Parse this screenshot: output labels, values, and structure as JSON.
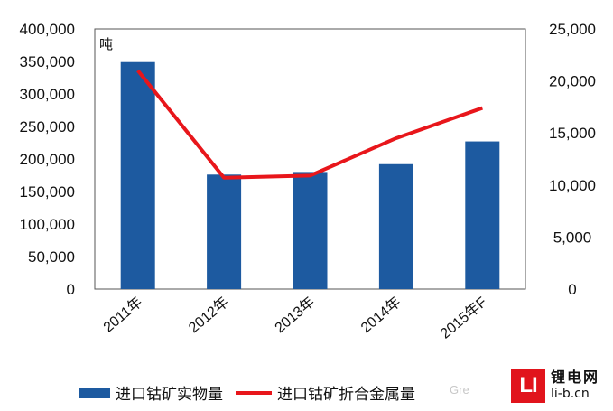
{
  "chart_data": {
    "type": "bar",
    "categories": [
      "2011年",
      "2012年",
      "2013年",
      "2014年",
      "2015年F"
    ],
    "series": [
      {
        "name": "进口钴矿实物量",
        "type": "bar",
        "axis": "left",
        "color": "#1d5aa0",
        "values": [
          349000,
          176000,
          180000,
          192000,
          227000
        ]
      },
      {
        "name": "进口钴矿折合金属量",
        "type": "line",
        "axis": "right",
        "color": "#e8161b",
        "values": [
          21000,
          10700,
          10900,
          14500,
          17400
        ]
      }
    ],
    "y_left": {
      "unit": "吨",
      "ylim": [
        0,
        400000
      ],
      "ticks": [
        "0",
        "50,000",
        "100,000",
        "150,000",
        "200,000",
        "250,000",
        "300,000",
        "350,000",
        "400,000"
      ]
    },
    "y_right": {
      "ylim": [
        0,
        25000
      ],
      "ticks": [
        "0",
        "5,000",
        "10,000",
        "15,000",
        "20,000",
        "25,000"
      ]
    },
    "grid": false,
    "legend_position": "bottom"
  },
  "watermark": "Gre",
  "logo": {
    "mark": "LI",
    "name": "锂电网",
    "url": "li-b.cn"
  }
}
